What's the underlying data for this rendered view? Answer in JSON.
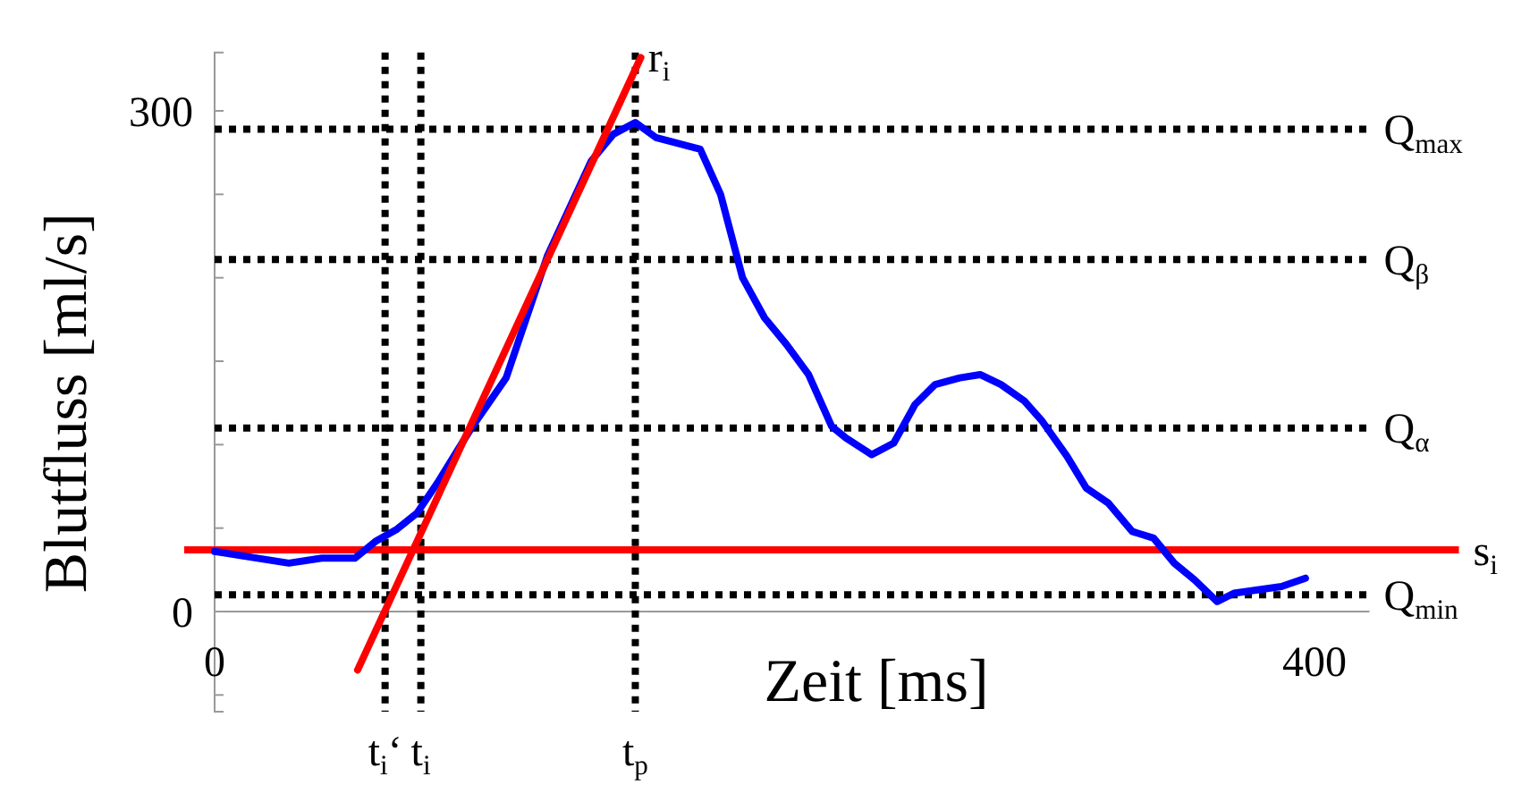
{
  "chart_data": {
    "type": "line",
    "xlabel": "Zeit [ms]",
    "ylabel": "Blutfluss [ml/s]",
    "xlim": [
      0,
      420
    ],
    "xticks": [
      0,
      400
    ],
    "ylim": [
      -60,
      335
    ],
    "yticks": [
      {
        "value": -50,
        "label": null
      },
      0,
      {
        "value": 50,
        "label": null
      },
      {
        "value": 100,
        "label": null
      },
      {
        "value": 150,
        "label": null
      },
      {
        "value": 200,
        "label": null
      },
      {
        "value": 250,
        "label": null
      },
      300
    ],
    "grid": false,
    "marker": "none",
    "line_style": "solid",
    "series": [
      {
        "color": "#0000ff",
        "x": [
          0,
          27,
          39,
          51,
          58.5,
          66,
          73.6,
          81,
          93,
          106,
          121,
          137,
          145,
          153,
          160.5,
          176.6,
          184,
          192,
          200,
          208,
          216,
          224.4,
          229.6,
          239,
          247,
          254.7,
          262,
          271,
          278.4,
          286,
          294.6,
          301,
          310,
          317,
          325,
          333.7,
          341.5,
          349,
          356.4,
          364.6,
          370.7,
          388,
          396.7
        ],
        "values": [
          36,
          29,
          32,
          32,
          42,
          49,
          59,
          77,
          109,
          140,
          213,
          270,
          286,
          293,
          284,
          277,
          250,
          200,
          176,
          160,
          142,
          111,
          104,
          94,
          101,
          124,
          136,
          140,
          142,
          136,
          126,
          114,
          93,
          74,
          65,
          48,
          44,
          29,
          19,
          6,
          11,
          15,
          20
        ]
      },
      {
        "color": "#ff0000",
        "x": [
          52,
          155
        ],
        "values": [
          -35,
          332
        ]
      }
    ],
    "annotations": [
      {
        "text": "r$_{i}$",
        "x": 155,
        "y": 332
      }
    ],
    "ref_lines": [
      {
        "axis": "y",
        "value": 289,
        "label": "Q$_{max}$",
        "color": "#000000",
        "line_style": "dotted"
      },
      {
        "axis": "y",
        "value": 211,
        "label": "Q$_{β}$",
        "color": "#000000",
        "line_style": "dotted"
      },
      {
        "axis": "y",
        "value": 110,
        "label": "Q$_{α}$",
        "color": "#000000",
        "line_style": "dotted"
      },
      {
        "axis": "y",
        "value": 10,
        "label": "Q$_{min}$",
        "color": "#000000",
        "line_style": "dotted"
      },
      {
        "axis": "y",
        "value": 37,
        "label": "s$_{i}$",
        "color": "#ff0000",
        "line_style": "solid"
      },
      {
        "axis": "x",
        "value": 62,
        "label": "t$_{i}$‘",
        "color": "#000000",
        "line_style": "dotted"
      },
      {
        "axis": "x",
        "value": 75,
        "label": "t$_{i}$",
        "color": "#000000",
        "line_style": "dotted"
      },
      {
        "axis": "x",
        "value": 153,
        "label": "t$_{p}$",
        "color": "#000000",
        "line_style": "dotted"
      }
    ]
  }
}
